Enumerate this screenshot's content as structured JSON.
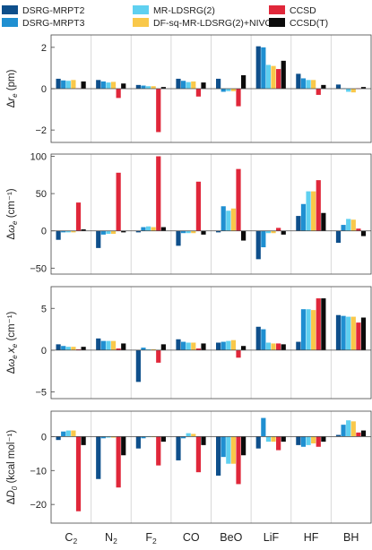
{
  "legend": [
    {
      "name": "DSRG-MRPT2",
      "color": "#0e4f8b"
    },
    {
      "name": "DSRG-MRPT3",
      "color": "#1f8fd1"
    },
    {
      "name": "MR-LDSRG(2)",
      "color": "#5fd0f0"
    },
    {
      "name": "DF-sq-MR-LDSRG(2)+NIVO",
      "color": "#f9c84a"
    },
    {
      "name": "CCSD",
      "color": "#e0273a"
    },
    {
      "name": "CCSD(T)",
      "color": "#0b0b0b"
    }
  ],
  "x_tick_labels": [
    {
      "main": "C",
      "sub": "2"
    },
    {
      "main": "N",
      "sub": "2"
    },
    {
      "main": "F",
      "sub": "2"
    },
    {
      "main": "CO",
      "sub": ""
    },
    {
      "main": "BeO",
      "sub": ""
    },
    {
      "main": "LiF",
      "sub": ""
    },
    {
      "main": "HF",
      "sub": ""
    },
    {
      "main": "BH",
      "sub": ""
    }
  ],
  "chart_data": [
    {
      "type": "bar",
      "ylabel": "Δr_e (pm)",
      "ylabel_parts": {
        "pre": "Δ",
        "main": "r",
        "sub": "e",
        "post": " (pm)"
      },
      "ylim": [
        -2.6,
        2.6
      ],
      "yticks": [
        -2,
        0,
        2
      ],
      "categories": [
        "C2",
        "N2",
        "F2",
        "CO",
        "BeO",
        "LiF",
        "HF",
        "BH"
      ],
      "series": [
        {
          "name": "DSRG-MRPT2",
          "values": [
            0.48,
            0.42,
            0.18,
            0.48,
            0.48,
            2.05,
            0.72,
            0.2
          ]
        },
        {
          "name": "DSRG-MRPT3",
          "values": [
            0.4,
            0.35,
            0.15,
            0.38,
            -0.15,
            2.0,
            0.5,
            0.02
          ]
        },
        {
          "name": "MR-LDSRG(2)",
          "values": [
            0.38,
            0.3,
            0.12,
            0.32,
            -0.12,
            1.15,
            0.42,
            -0.15
          ]
        },
        {
          "name": "DF-sq-MR-LDSRG(2)+NIVO",
          "values": [
            0.42,
            0.33,
            0.12,
            0.35,
            -0.12,
            1.1,
            0.42,
            -0.18
          ]
        },
        {
          "name": "CCSD",
          "values": [
            0.02,
            -0.45,
            -2.1,
            -0.38,
            -0.85,
            0.95,
            -0.3,
            0.02
          ]
        },
        {
          "name": "CCSD(T)",
          "values": [
            0.35,
            0.25,
            0.08,
            0.3,
            0.65,
            1.35,
            0.18,
            0.08
          ]
        }
      ]
    },
    {
      "type": "bar",
      "ylabel": "Δω_e (cm⁻¹)",
      "ylabel_parts": {
        "pre": "Δ",
        "main": "ω",
        "sub": "e",
        "post": " (cm⁻¹)"
      },
      "ylim": [
        -58,
        103
      ],
      "yticks": [
        -50,
        0,
        50,
        100
      ],
      "categories": [
        "C2",
        "N2",
        "F2",
        "CO",
        "BeO",
        "LiF",
        "HF",
        "BH"
      ],
      "series": [
        {
          "name": "DSRG-MRPT2",
          "values": [
            -12,
            -23,
            -2,
            -20,
            -2,
            -38,
            20,
            -16
          ]
        },
        {
          "name": "DSRG-MRPT3",
          "values": [
            -2,
            -5,
            5,
            -3,
            33,
            -22,
            36,
            8
          ]
        },
        {
          "name": "MR-LDSRG(2)",
          "values": [
            -2,
            -4,
            6,
            -3,
            27,
            -3,
            53,
            16
          ]
        },
        {
          "name": "DF-sq-MR-LDSRG(2)+NIVO",
          "values": [
            -2,
            -4,
            5,
            -3,
            30,
            -3,
            53,
            15
          ]
        },
        {
          "name": "CCSD",
          "values": [
            38,
            78,
            100,
            66,
            83,
            4,
            68,
            3
          ]
        },
        {
          "name": "CCSD(T)",
          "values": [
            2,
            -2,
            5,
            -5,
            -13,
            -5,
            24,
            -7
          ]
        }
      ]
    },
    {
      "type": "bar",
      "ylabel": "Δω_e x_e (cm⁻¹)",
      "ylabel_parts": {
        "pre": "Δ",
        "main": "ω",
        "sub": "e",
        "main2": "x",
        "sub2": "e",
        "post": " (cm⁻¹)"
      },
      "ylim": [
        -5.8,
        7.6
      ],
      "yticks": [
        -5,
        0,
        5
      ],
      "categories": [
        "C2",
        "N2",
        "F2",
        "CO",
        "BeO",
        "LiF",
        "HF",
        "BH"
      ],
      "series": [
        {
          "name": "DSRG-MRPT2",
          "values": [
            0.7,
            1.4,
            -3.8,
            1.3,
            0.9,
            2.8,
            1.0,
            4.2
          ]
        },
        {
          "name": "DSRG-MRPT3",
          "values": [
            0.5,
            1.1,
            0.3,
            1.0,
            1.0,
            2.5,
            4.9,
            4.1
          ]
        },
        {
          "name": "MR-LDSRG(2)",
          "values": [
            0.4,
            1.1,
            0.1,
            0.9,
            1.1,
            0.9,
            4.9,
            4.0
          ]
        },
        {
          "name": "DF-sq-MR-LDSRG(2)+NIVO",
          "values": [
            0.4,
            1.1,
            0.1,
            0.9,
            1.2,
            0.8,
            4.8,
            4.0
          ]
        },
        {
          "name": "CCSD",
          "values": [
            0.1,
            0.2,
            -1.5,
            0.2,
            -0.9,
            0.8,
            6.2,
            3.3
          ]
        },
        {
          "name": "CCSD(T)",
          "values": [
            0.4,
            0.8,
            0.7,
            0.8,
            0.5,
            0.7,
            6.2,
            3.9
          ]
        }
      ]
    },
    {
      "type": "bar",
      "ylabel": "ΔD_0 (kcal mol⁻¹)",
      "ylabel_parts": {
        "pre": "Δ",
        "main": "D",
        "sub": "0",
        "post": " (kcal mol⁻¹)"
      },
      "ylim": [
        -25.5,
        7.5
      ],
      "yticks": [
        -20,
        -10,
        0
      ],
      "categories": [
        "C2",
        "N2",
        "F2",
        "CO",
        "BeO",
        "LiF",
        "HF",
        "BH"
      ],
      "series": [
        {
          "name": "DSRG-MRPT2",
          "values": [
            -1,
            -12.5,
            -3.5,
            -7,
            -11.5,
            -3.5,
            -2.5,
            0.5
          ]
        },
        {
          "name": "DSRG-MRPT3",
          "values": [
            1.5,
            -0.5,
            -0.5,
            -0.5,
            -6,
            5.5,
            -3,
            3.5
          ]
        },
        {
          "name": "MR-LDSRG(2)",
          "values": [
            1.8,
            -0.3,
            0,
            1,
            -8,
            -1.5,
            -2.5,
            4.8
          ]
        },
        {
          "name": "DF-sq-MR-LDSRG(2)+NIVO",
          "values": [
            1.8,
            -0.3,
            0,
            0.8,
            -8,
            -1.5,
            -2,
            4.5
          ]
        },
        {
          "name": "CCSD",
          "values": [
            -22,
            -15,
            -8.5,
            -10.5,
            -14,
            -4,
            -3,
            1.2
          ]
        },
        {
          "name": "CCSD(T)",
          "values": [
            -2.5,
            -5.5,
            -1.5,
            -2.5,
            -5.5,
            -1.5,
            -1.5,
            1.8
          ]
        }
      ]
    }
  ]
}
